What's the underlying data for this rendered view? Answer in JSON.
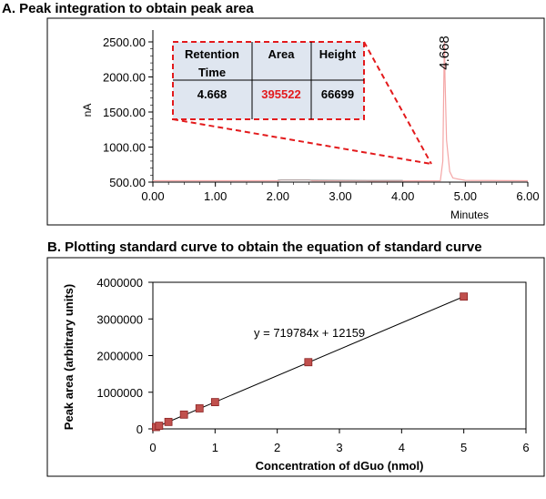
{
  "panel_a": {
    "title": "A. Peak integration to obtain peak area",
    "ylabel": "nA",
    "xlabel": "Minutes",
    "peak_label": "4.668",
    "table": {
      "headers": [
        "Retention Time",
        "Area",
        "Height"
      ],
      "header_lines": [
        [
          "Retention",
          "Time"
        ],
        [
          "Area"
        ],
        [
          "Height"
        ]
      ],
      "row": [
        "4.668",
        "395522",
        "66699"
      ],
      "highlight_color": "#e31a1c"
    },
    "colors": {
      "trace": "#f4a6a6",
      "baseline": "#9a9a9a",
      "callout": "#e31a1c",
      "table_fill": "#dfe6f0"
    }
  },
  "panel_b": {
    "title": "B. Plotting standard curve to obtain the equation of standard curve",
    "equation": "y = 719784x + 12159",
    "colors": {
      "marker": "#c0504d",
      "marker_edge": "#8b2323",
      "line": "#000000"
    }
  },
  "chart_data": [
    {
      "type": "line",
      "title": "A. Peak integration to obtain peak area",
      "xlabel": "Minutes",
      "ylabel": "nA",
      "xlim": [
        0,
        6
      ],
      "ylim": [
        500,
        2500
      ],
      "x_ticks": [
        "0.00",
        "1.00",
        "2.00",
        "3.00",
        "4.00",
        "5.00",
        "6.00"
      ],
      "y_ticks": [
        "500.00",
        "1000.00",
        "1500.00",
        "2000.00",
        "2500.00"
      ],
      "peak": {
        "retention_time": 4.668,
        "area": 395522,
        "height": 66699
      },
      "series": [
        {
          "x": [
            0,
            2.0,
            2.05,
            2.5,
            2.55,
            3.4,
            3.5,
            4.6,
            4.64,
            4.655,
            4.665,
            4.668,
            4.675,
            4.7,
            4.75,
            4.8,
            4.9,
            5.0,
            6.0
          ],
          "y": [
            520,
            520,
            530,
            530,
            520,
            520,
            515,
            520,
            800,
            1800,
            2500,
            2500,
            2000,
            1100,
            650,
            560,
            540,
            525,
            520
          ]
        }
      ]
    },
    {
      "type": "scatter",
      "title": "B. Plotting standard curve to obtain the equation of standard curve",
      "xlabel": "Concentration of dGuo (nmol)",
      "ylabel": "Peak area (arbitrary units)",
      "xlim": [
        0,
        6
      ],
      "ylim": [
        0,
        4000000
      ],
      "x_ticks": [
        "0",
        "1",
        "2",
        "3",
        "4",
        "5",
        "6"
      ],
      "y_ticks": [
        "0",
        "1000000",
        "2000000",
        "3000000",
        "4000000"
      ],
      "series": [
        {
          "x": [
            0.05,
            0.1,
            0.25,
            0.5,
            0.75,
            1,
            2.5,
            5
          ],
          "y": [
            50000,
            85000,
            190000,
            390000,
            560000,
            730000,
            1820000,
            3610000
          ]
        }
      ],
      "fit": {
        "slope": 719784,
        "intercept": 12159,
        "label": "y = 719784x + 12159"
      }
    }
  ]
}
